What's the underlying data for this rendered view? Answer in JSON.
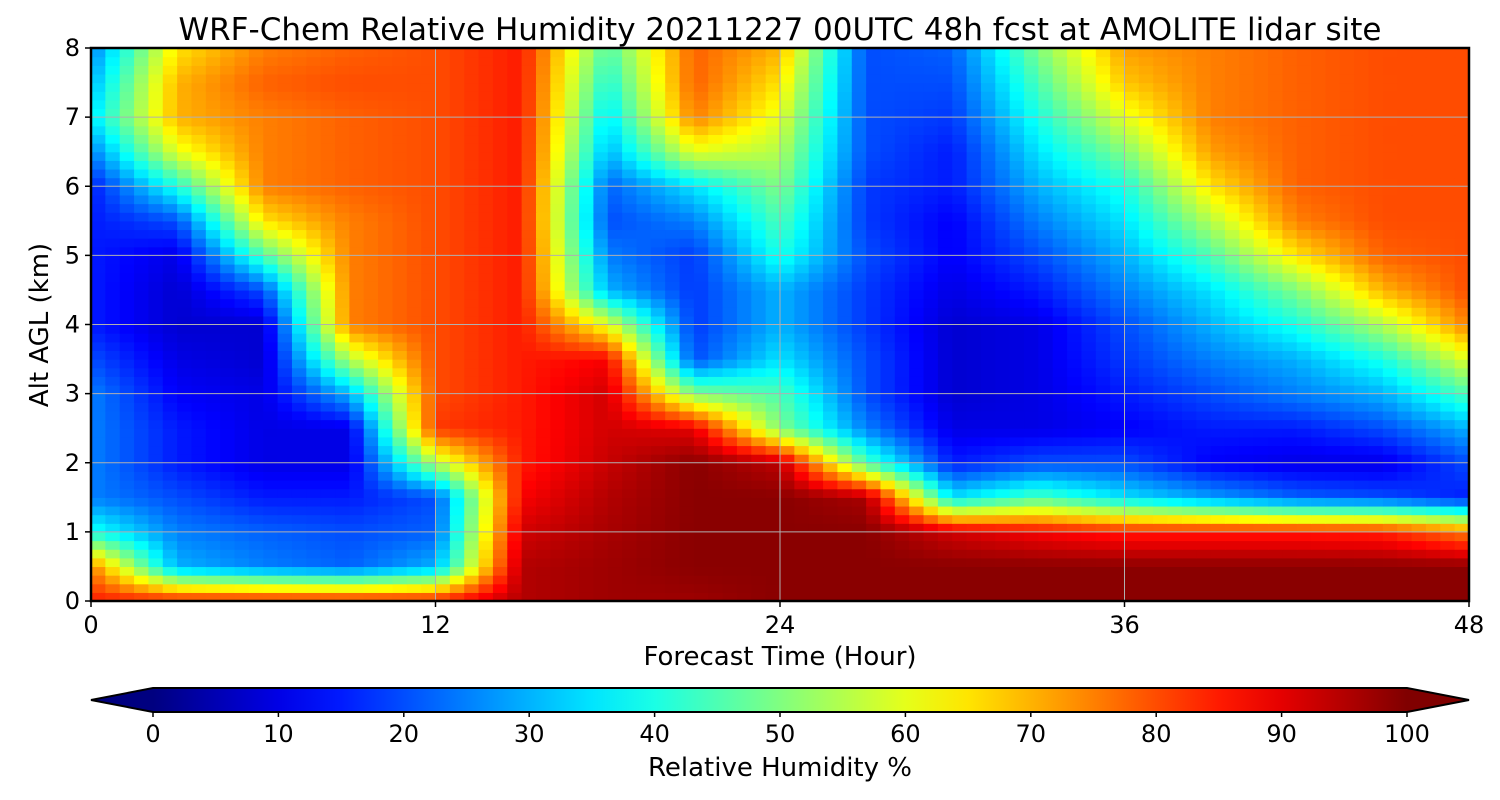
{
  "chart_data": {
    "type": "heatmap",
    "title": "WRF-Chem Relative Humidity 20211227 00UTC 48h fcst at AMOLITE lidar site",
    "xlabel": "Forecast Time (Hour)",
    "ylabel": "Alt AGL (km)",
    "xlim": [
      0,
      48
    ],
    "ylim": [
      0,
      8
    ],
    "xticks": [
      0,
      12,
      24,
      36,
      48
    ],
    "yticks": [
      0,
      1,
      2,
      3,
      4,
      5,
      6,
      7,
      8
    ],
    "grid": true,
    "colormap": "jet",
    "colorbar": {
      "label": "Relative Humidity %",
      "min": 0,
      "max": 100,
      "ticks": [
        0,
        10,
        20,
        30,
        40,
        50,
        60,
        70,
        80,
        90,
        100
      ],
      "extend": "both",
      "orientation": "horizontal",
      "placement": "bottom"
    },
    "x_hours": [
      0,
      3,
      6,
      9,
      12,
      15,
      18,
      21,
      24,
      27,
      30,
      33,
      36,
      39,
      42,
      45,
      48
    ],
    "y_km": [
      0,
      0.5,
      1,
      1.5,
      2,
      2.5,
      3,
      3.5,
      4,
      4.5,
      5,
      5.5,
      6,
      6.5,
      7,
      7.5,
      8
    ],
    "values": [
      [
        85,
        85,
        85,
        85,
        85,
        95,
        97,
        97,
        99,
        99,
        99,
        99,
        99,
        99,
        99,
        99,
        99
      ],
      [
        75,
        30,
        25,
        22,
        30,
        95,
        97,
        99,
        99,
        99,
        99,
        99,
        99,
        99,
        99,
        99,
        99
      ],
      [
        40,
        25,
        22,
        20,
        22,
        92,
        96,
        99,
        99,
        99,
        92,
        88,
        85,
        85,
        85,
        84,
        75
      ],
      [
        25,
        20,
        15,
        15,
        20,
        88,
        95,
        99,
        99,
        96,
        35,
        45,
        35,
        28,
        22,
        20,
        15
      ],
      [
        25,
        15,
        10,
        10,
        55,
        85,
        93,
        99,
        94,
        45,
        15,
        20,
        20,
        12,
        10,
        10,
        20
      ],
      [
        25,
        15,
        10,
        10,
        82,
        85,
        92,
        90,
        50,
        25,
        10,
        10,
        12,
        15,
        15,
        20,
        30
      ],
      [
        25,
        12,
        10,
        30,
        80,
        85,
        92,
        50,
        45,
        20,
        8,
        10,
        15,
        20,
        25,
        30,
        45
      ],
      [
        20,
        10,
        8,
        55,
        80,
        85,
        88,
        20,
        35,
        20,
        8,
        10,
        18,
        25,
        30,
        40,
        60
      ],
      [
        15,
        8,
        8,
        75,
        80,
        85,
        60,
        18,
        30,
        18,
        8,
        10,
        20,
        30,
        40,
        55,
        75
      ],
      [
        15,
        8,
        20,
        75,
        80,
        85,
        30,
        18,
        30,
        18,
        10,
        15,
        25,
        35,
        50,
        70,
        80
      ],
      [
        15,
        10,
        45,
        75,
        80,
        85,
        25,
        18,
        40,
        20,
        12,
        20,
        30,
        45,
        65,
        78,
        80
      ],
      [
        15,
        20,
        65,
        75,
        80,
        85,
        20,
        25,
        45,
        18,
        12,
        25,
        35,
        55,
        75,
        80,
        80
      ],
      [
        15,
        40,
        75,
        78,
        80,
        85,
        22,
        35,
        50,
        18,
        15,
        30,
        40,
        65,
        78,
        80,
        80
      ],
      [
        25,
        60,
        75,
        78,
        80,
        85,
        30,
        60,
        55,
        20,
        15,
        35,
        50,
        72,
        78,
        80,
        80
      ],
      [
        35,
        70,
        75,
        78,
        80,
        85,
        35,
        75,
        60,
        20,
        18,
        40,
        60,
        75,
        78,
        80,
        80
      ],
      [
        30,
        70,
        78,
        80,
        80,
        85,
        40,
        78,
        65,
        20,
        20,
        45,
        68,
        75,
        78,
        80,
        80
      ],
      [
        25,
        65,
        75,
        78,
        80,
        85,
        45,
        78,
        70,
        20,
        22,
        50,
        72,
        75,
        78,
        80,
        80
      ]
    ]
  }
}
